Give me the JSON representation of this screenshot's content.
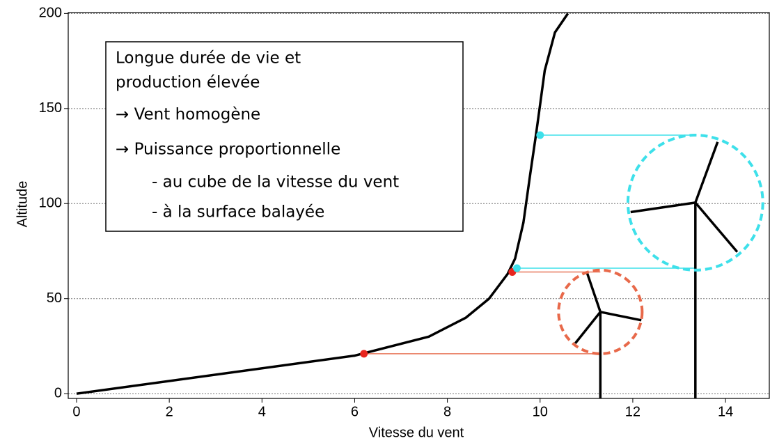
{
  "chart_data": {
    "type": "line",
    "xlabel": "Vitesse du vent",
    "ylabel": "Altitude",
    "xlim": [
      -0.18,
      14.96
    ],
    "ylim": [
      -2.5,
      200.5
    ],
    "xticks": [
      0,
      2,
      4,
      6,
      8,
      10,
      12,
      14
    ],
    "yticks": [
      0,
      50,
      100,
      150,
      200
    ],
    "grid": true,
    "series": [
      {
        "color": "#000000",
        "x": [
          0,
          6,
          7.6,
          8.4,
          8.9,
          9.3,
          9.46,
          9.64,
          9.79,
          9.91,
          10,
          10.1,
          10.32,
          10.6
        ],
        "y": [
          0,
          20,
          30,
          40,
          50,
          63,
          71,
          90,
          116,
          136,
          152,
          170,
          190,
          200
        ]
      }
    ],
    "points": [
      {
        "x": 6.2,
        "y": 21,
        "color": "#e8251e"
      },
      {
        "x": 9.4,
        "y": 64,
        "color": "#e8251e"
      },
      {
        "x": 9.5,
        "y": 66,
        "color": "#3ee0ea"
      },
      {
        "x": 10,
        "y": 136,
        "color": "#3ee0ea"
      }
    ],
    "guides": [
      {
        "x": [
          6.2,
          11.3
        ],
        "y": 21,
        "color": "#e8785c"
      },
      {
        "x": [
          9.4,
          11.3
        ],
        "y": 64,
        "color": "#e8785c"
      },
      {
        "x": [
          9.5,
          13.35
        ],
        "y": 66,
        "color": "#3ee0ea"
      },
      {
        "x": [
          10,
          13.35
        ],
        "y": 136,
        "color": "#3ee0ea"
      }
    ],
    "turbines": [
      {
        "x": 11.3,
        "rotor": [
          21,
          65
        ],
        "color": "#e8694a"
      },
      {
        "x": 13.35,
        "rotor": [
          65,
          136
        ],
        "color": "#3ee0ea"
      }
    ],
    "annotation": [
      "Longue durée de vie et",
      "production élevée",
      "→  Vent homogène",
      "→   Puissance proportionnelle",
      "- au cube de la vitesse du vent",
      "- à la surface balayée"
    ]
  }
}
